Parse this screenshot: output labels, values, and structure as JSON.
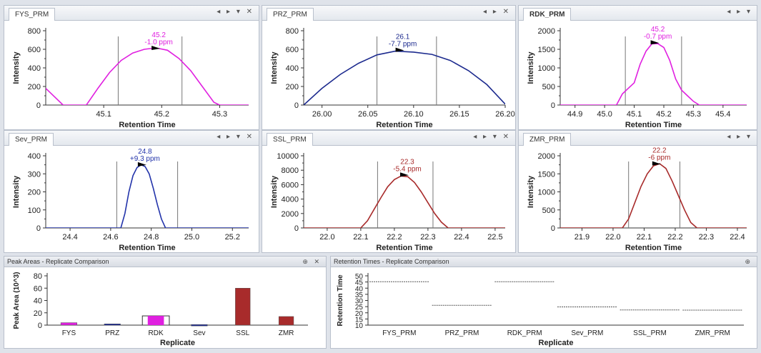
{
  "colors": {
    "magenta": "#e020e0",
    "navy": "#1c2a8e",
    "brown": "#a82b2b",
    "blue": "#2233aa",
    "axis": "#333333",
    "guide": "#777777"
  },
  "chromatograms": [
    {
      "tab": "FYS_PRM",
      "tab_bold": false,
      "controls": "◂ ▸ ▾ ✕",
      "ylabel": "Intensity",
      "xlabel": "Retention Time",
      "ylim": [
        0,
        800
      ],
      "yticks": [
        "0",
        "200",
        "400",
        "600",
        "800"
      ],
      "xlim": [
        45.0,
        45.35
      ],
      "xticks": [
        45.1,
        45.2,
        45.3
      ],
      "xtick_labels": [
        "45.1",
        "45.2",
        "45.3"
      ],
      "color": "magenta",
      "ann1": "45.2",
      "ann2": "-1.0 ppm",
      "apex": [
        45.19,
        600
      ],
      "vlines": [
        45.125,
        45.235
      ],
      "points": [
        [
          45.0,
          180
        ],
        [
          45.02,
          60
        ],
        [
          45.03,
          0
        ],
        [
          45.07,
          0
        ],
        [
          45.09,
          180
        ],
        [
          45.11,
          350
        ],
        [
          45.13,
          480
        ],
        [
          45.15,
          560
        ],
        [
          45.17,
          600
        ],
        [
          45.19,
          615
        ],
        [
          45.21,
          590
        ],
        [
          45.23,
          500
        ],
        [
          45.25,
          370
        ],
        [
          45.27,
          200
        ],
        [
          45.29,
          30
        ],
        [
          45.3,
          0
        ],
        [
          45.35,
          0
        ]
      ]
    },
    {
      "tab": "PRZ_PRM",
      "tab_bold": false,
      "controls": "◂ ▸ ✕",
      "ylabel": "Intensity",
      "xlabel": "Retention Time",
      "ylim": [
        0,
        800
      ],
      "yticks": [
        "0",
        "200",
        "400",
        "600",
        "800"
      ],
      "xlim": [
        25.98,
        26.2
      ],
      "xticks": [
        26.0,
        26.05,
        26.1,
        26.15,
        26.2
      ],
      "xtick_labels": [
        "26.00",
        "26.05",
        "26.10",
        "26.15",
        "26.20"
      ],
      "color": "navy",
      "ann1": "26.1",
      "ann2": "-7.7 ppm",
      "apex": [
        26.085,
        580
      ],
      "vlines": [
        26.06,
        26.125
      ],
      "points": [
        [
          25.98,
          0
        ],
        [
          26.0,
          180
        ],
        [
          26.02,
          330
        ],
        [
          26.04,
          450
        ],
        [
          26.06,
          540
        ],
        [
          26.08,
          580
        ],
        [
          26.1,
          570
        ],
        [
          26.12,
          545
        ],
        [
          26.14,
          480
        ],
        [
          26.16,
          370
        ],
        [
          26.18,
          220
        ],
        [
          26.2,
          10
        ]
      ]
    },
    {
      "tab": "RDK_PRM",
      "tab_bold": true,
      "controls": "◂ ▸ ▾",
      "ylabel": "Intensity",
      "xlabel": "Retention Time",
      "ylim": [
        0,
        2000
      ],
      "yticks": [
        "0",
        "500",
        "1000",
        "1500",
        "2000"
      ],
      "xlim": [
        44.85,
        45.48
      ],
      "xticks": [
        44.9,
        45.0,
        45.1,
        45.2,
        45.3,
        45.4
      ],
      "xtick_labels": [
        "44.9",
        "45.0",
        "45.1",
        "45.2",
        "45.3",
        "45.4"
      ],
      "color": "magenta",
      "ann1": "45.2",
      "ann2": "-0.7 ppm",
      "apex": [
        45.17,
        1650
      ],
      "vlines": [
        45.07,
        45.26
      ],
      "points": [
        [
          44.85,
          0
        ],
        [
          45.04,
          0
        ],
        [
          45.06,
          300
        ],
        [
          45.08,
          450
        ],
        [
          45.1,
          600
        ],
        [
          45.12,
          1100
        ],
        [
          45.14,
          1450
        ],
        [
          45.16,
          1650
        ],
        [
          45.18,
          1650
        ],
        [
          45.2,
          1550
        ],
        [
          45.22,
          1200
        ],
        [
          45.24,
          700
        ],
        [
          45.26,
          400
        ],
        [
          45.28,
          250
        ],
        [
          45.3,
          100
        ],
        [
          45.32,
          0
        ],
        [
          45.48,
          0
        ]
      ]
    },
    {
      "tab": "Sev_PRM",
      "tab_bold": false,
      "controls": "◂ ▸ ▾ ✕",
      "ylabel": "Intensity",
      "xlabel": "Retention Time",
      "ylim": [
        0,
        400
      ],
      "yticks": [
        "0",
        "100",
        "200",
        "300",
        "400"
      ],
      "xlim": [
        24.28,
        25.28
      ],
      "xticks": [
        24.4,
        24.6,
        24.8,
        25.0,
        25.2
      ],
      "xtick_labels": [
        "24.4",
        "24.6",
        "24.8",
        "25.0",
        "25.2"
      ],
      "color": "blue",
      "ann1": "24.8",
      "ann2": "+9.3 ppm",
      "apex": [
        24.755,
        345
      ],
      "vlines": [
        24.63,
        24.93
      ],
      "points": [
        [
          24.28,
          0
        ],
        [
          24.65,
          0
        ],
        [
          24.67,
          80
        ],
        [
          24.69,
          200
        ],
        [
          24.71,
          290
        ],
        [
          24.73,
          335
        ],
        [
          24.75,
          350
        ],
        [
          24.77,
          340
        ],
        [
          24.79,
          300
        ],
        [
          24.81,
          220
        ],
        [
          24.83,
          130
        ],
        [
          24.85,
          50
        ],
        [
          24.87,
          0
        ],
        [
          25.28,
          0
        ]
      ]
    },
    {
      "tab": "SSL_PRM",
      "tab_bold": false,
      "controls": "◂ ▸ ▾ ✕",
      "ylabel": "Intensity",
      "xlabel": "Retention Time",
      "ylim": [
        0,
        10000
      ],
      "yticks": [
        "0",
        "2000",
        "4000",
        "6000",
        "8000",
        "10000"
      ],
      "xlim": [
        21.93,
        22.53
      ],
      "xticks": [
        22.0,
        22.1,
        22.2,
        22.3,
        22.4,
        22.5
      ],
      "xtick_labels": [
        "22.0",
        "22.1",
        "22.2",
        "22.3",
        "22.4",
        "22.5"
      ],
      "color": "brown",
      "ann1": "22.3",
      "ann2": "-5.4 ppm",
      "apex": [
        22.23,
        7200
      ],
      "vlines": [
        22.15,
        22.315
      ],
      "points": [
        [
          21.93,
          0
        ],
        [
          22.1,
          0
        ],
        [
          22.12,
          1000
        ],
        [
          22.14,
          2600
        ],
        [
          22.16,
          4200
        ],
        [
          22.18,
          5700
        ],
        [
          22.2,
          6700
        ],
        [
          22.22,
          7200
        ],
        [
          22.24,
          7100
        ],
        [
          22.26,
          6300
        ],
        [
          22.28,
          5000
        ],
        [
          22.3,
          3500
        ],
        [
          22.32,
          2000
        ],
        [
          22.34,
          800
        ],
        [
          22.36,
          0
        ],
        [
          22.53,
          0
        ]
      ]
    },
    {
      "tab": "ZMR_PRM",
      "tab_bold": false,
      "controls": "◂ ▸ ▾",
      "ylabel": "Intensity",
      "xlabel": "Retention Time",
      "ylim": [
        0,
        2000
      ],
      "yticks": [
        "0",
        "500",
        "1000",
        "1500",
        "2000"
      ],
      "xlim": [
        21.83,
        22.43
      ],
      "xticks": [
        21.9,
        22.0,
        22.1,
        22.2,
        22.3,
        22.4
      ],
      "xtick_labels": [
        "21.9",
        "22.0",
        "22.1",
        "22.2",
        "22.3",
        "22.4"
      ],
      "color": "brown",
      "ann1": "22.2",
      "ann2": "-6 ppm",
      "apex": [
        22.14,
        1750
      ],
      "vlines": [
        22.05,
        22.215
      ],
      "points": [
        [
          21.83,
          0
        ],
        [
          22.03,
          0
        ],
        [
          22.05,
          250
        ],
        [
          22.07,
          700
        ],
        [
          22.09,
          1150
        ],
        [
          22.11,
          1500
        ],
        [
          22.13,
          1720
        ],
        [
          22.15,
          1780
        ],
        [
          22.17,
          1650
        ],
        [
          22.19,
          1300
        ],
        [
          22.21,
          900
        ],
        [
          22.23,
          500
        ],
        [
          22.25,
          150
        ],
        [
          22.27,
          0
        ],
        [
          22.43,
          0
        ]
      ]
    }
  ],
  "peak_areas": {
    "title": "Peak Areas - Replicate Comparison",
    "controls": "⊕ ✕",
    "ylabel": "Peak Area (10^3)",
    "xlabel": "Replicate",
    "ylim": [
      0,
      80
    ],
    "yticks": [
      "0",
      "20",
      "40",
      "60",
      "80"
    ],
    "categories": [
      "FYS",
      "PRZ",
      "RDK",
      "Sev",
      "SSL",
      "ZMR"
    ],
    "values": [
      4,
      2,
      15,
      1,
      60,
      14
    ],
    "bar_colors": [
      "magenta",
      "navy",
      "magenta",
      "navy",
      "brown",
      "brown"
    ],
    "outline_rdk": true
  },
  "retention_times": {
    "title": "Retention Times - Replicate Comparison",
    "controls": "⊕",
    "ylabel": "Retention Time",
    "xlabel": "Replicate",
    "ylim": [
      10,
      50
    ],
    "yticks": [
      "10",
      "15",
      "20",
      "25",
      "30",
      "35",
      "40",
      "45",
      "50"
    ],
    "categories": [
      "FYS_PRM",
      "PRZ_PRM",
      "RDK_PRM",
      "Sev_PRM",
      "SSL_PRM",
      "ZMR_PRM"
    ],
    "values": [
      45.2,
      26.1,
      45.2,
      24.8,
      22.3,
      22.2
    ]
  }
}
